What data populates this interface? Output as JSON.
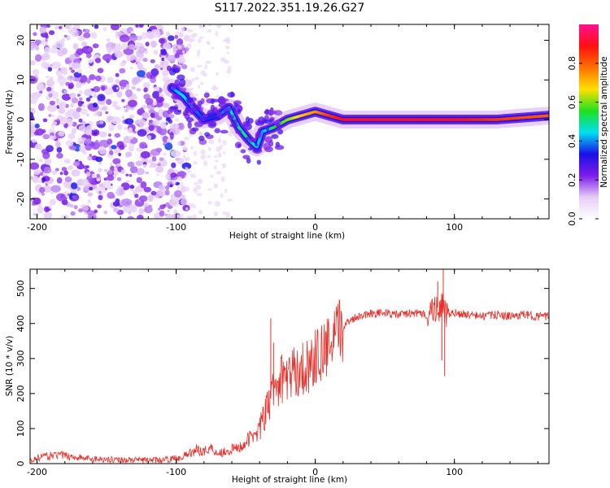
{
  "title": "S117.2022.351.19.26.G27",
  "colors": {
    "snr_line": "#e8302a",
    "frame": "#000000"
  },
  "chart_data": [
    {
      "type": "heatmap",
      "name": "spectrogram",
      "xlabel": "Height of straight line (km)",
      "ylabel": "Frequency (Hz)",
      "xlim": [
        -205,
        168
      ],
      "ylim": [
        -25,
        24
      ],
      "xticks": [
        -200,
        -100,
        0,
        100
      ],
      "xtick_labels": [
        "-200",
        "-100",
        "0",
        "100"
      ],
      "yticks": [
        20,
        10,
        0,
        -10,
        -20
      ],
      "ytick_labels": [
        "20",
        "10",
        "0",
        "-10",
        "-20"
      ],
      "colorbar": {
        "label": "Normalized spectral amplitude",
        "range": [
          0,
          1
        ],
        "ticks": [
          0.0,
          0.2,
          0.4,
          0.6,
          0.8
        ],
        "tick_labels": [
          "0.0",
          "0.2",
          "0.4",
          "0.6",
          "0.8"
        ],
        "colors": [
          "#ffffff",
          "#e6ccf7",
          "#7d1be8",
          "#1b10e8",
          "#00e0f0",
          "#20e020",
          "#ffe000",
          "#ff7000",
          "#ff1010",
          "#ff1090"
        ]
      },
      "ridge": {
        "description": "dominant frequency trace",
        "x": [
          -103,
          -95,
          -88,
          -80,
          -70,
          -62,
          -55,
          -48,
          -42,
          -38,
          -30,
          -20,
          -10,
          0,
          10,
          20,
          50,
          85,
          100,
          130,
          168
        ],
        "freq": [
          8,
          6,
          3,
          0,
          1,
          3,
          -2,
          -5,
          -7,
          -3,
          -2,
          0,
          1,
          2,
          1,
          0,
          0,
          0,
          0,
          0,
          1
        ],
        "amplitude": [
          0.4,
          0.45,
          0.4,
          0.35,
          0.35,
          0.45,
          0.5,
          0.5,
          0.45,
          0.4,
          0.55,
          0.6,
          0.7,
          0.75,
          0.85,
          0.9,
          0.9,
          0.9,
          0.9,
          0.85,
          0.8
        ]
      },
      "noise_region": {
        "x_from": -205,
        "x_to": -100,
        "freq_from": -25,
        "freq_to": 24,
        "level": 0.1
      }
    },
    {
      "type": "line",
      "name": "snr",
      "xlabel": "Height of straight line (km)",
      "ylabel": "SNR (10 * v/v)",
      "xlim": [
        -205,
        168
      ],
      "ylim": [
        0,
        555
      ],
      "xticks": [
        -200,
        -100,
        0,
        100
      ],
      "xtick_labels": [
        "-200",
        "-100",
        "0",
        "100"
      ],
      "yticks": [
        0,
        100,
        200,
        300,
        400,
        500
      ],
      "ytick_labels": [
        "0",
        "100",
        "200",
        "300",
        "400",
        "500"
      ],
      "series": [
        {
          "name": "SNR",
          "x": [
            -205,
            -195,
            -185,
            -175,
            -165,
            -150,
            -130,
            -110,
            -100,
            -95,
            -90,
            -85,
            -80,
            -75,
            -70,
            -65,
            -60,
            -55,
            -50,
            -45,
            -40,
            -35,
            -30,
            -25,
            -20,
            -15,
            -10,
            -5,
            0,
            5,
            10,
            15,
            20,
            25,
            30,
            35,
            40,
            50,
            60,
            70,
            80,
            85,
            90,
            95,
            100,
            110,
            120,
            130,
            140,
            150,
            160,
            168
          ],
          "y": [
            10,
            20,
            25,
            20,
            15,
            12,
            10,
            10,
            15,
            20,
            30,
            40,
            35,
            45,
            30,
            35,
            40,
            45,
            60,
            80,
            100,
            150,
            210,
            240,
            250,
            260,
            270,
            280,
            300,
            320,
            330,
            360,
            390,
            410,
            420,
            425,
            430,
            430,
            425,
            430,
            425,
            440,
            450,
            420,
            430,
            425,
            420,
            425,
            420,
            425,
            420,
            420
          ]
        }
      ],
      "spikes": [
        {
          "x": -32,
          "y": 415
        },
        {
          "x": -30,
          "y": 345
        },
        {
          "x": 88,
          "y": 520
        },
        {
          "x": 92,
          "y": 555
        },
        {
          "x": 93,
          "y": 250
        },
        {
          "x": 91,
          "y": 295
        }
      ]
    }
  ]
}
